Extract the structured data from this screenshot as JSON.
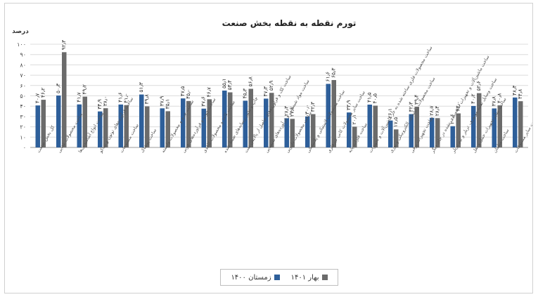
{
  "chart_data": {
    "type": "bar",
    "title": "تورم نقطه به نقطه بخش صنعت",
    "ylabel": "درصد",
    "ylim": [
      0,
      100
    ],
    "yticks": [
      "۰",
      "۱۰",
      "۲۰",
      "۳۰",
      "۴۰",
      "۵۰",
      "۶۰",
      "۷۰",
      "۸۰",
      "۹۰",
      "۱۰۰"
    ],
    "grid": true,
    "legend_position": "bottom",
    "categories": [
      "کل بخش صنعت",
      "ساخت محصولات غذایی",
      "ساخت انواع آشامیدنی‌ها",
      "ساخت فرآورده‌های توتون و تنباکو",
      "ساخت منسوجات",
      "ساخت پوشاک",
      "ساخت چرم و محصولات وابسته",
      "ساخت چوب و فرآورده‌های چوبی",
      "ساخت کاغذ و محصولات کاغذی",
      "چاپ و تکثیر رسانه‌های ضبط شده",
      "ساخت کک و فرآورده‌های حاصل از پالایش نفت",
      "ساخت مواد شیمیایی و فرآورده‌های شیمیایی",
      "ساخت محصولات دارویی",
      "ساخت محصولات لاستیکی و پلاستیکی",
      "ساخت سایر محصولات کانی غیرفلزی",
      "ساخت فلزات پایه",
      "ساخت محصولات فلزی ساخته شده به جز ماشین‌آلات و تجهیزات",
      "ساخت محصولات رایانه‌ای، الکترونیکی و نوری",
      "ساخت تجهیزات برقی",
      "ساخت ماشین‌آلات و تجهیزات طبقه‌بندی نشده در جای دیگر",
      "ساخت وسایل نقلیه موتوری، تریلر و نیم تریلر",
      "ساخت سایر تجهیزات حمل و نقل",
      "ساخت مبلمان",
      "ساخت سایر مصنوعات"
    ],
    "series": [
      {
        "name": "زمستان ۱۴۰۰",
        "color": "#2e5f9a",
        "values": [
          40.7,
          50.3,
          41.7,
          34.9,
          41.6,
          51.3,
          37.9,
          47.5,
          37.6,
          55.1,
          45.3,
          47.3,
          28.3,
          30.0,
          61.6,
          33.9,
          41.5,
          26.1,
          32.3,
          28.7,
          20.6,
          40.2,
          37.8,
          48.4
        ],
        "labels": [
          "۴۰٫۷",
          "۵۰٫۳",
          "۴۱٫۷",
          "۳۴٫۹",
          "۴۱٫۶",
          "۵۱٫۳",
          "۳۷٫۹",
          "۴۷٫۵",
          "۳۷٫۶",
          "۵۵٫۱",
          "۴۵٫۳",
          "۴۷٫۳",
          "۲۸٫۳",
          "۳۰٫۰",
          "۶۱٫۶",
          "۳۳٫۹",
          "۴۱٫۵",
          "۲۶٫۱",
          "۳۲٫۳",
          "۲۸٫۷",
          "۲۰٫۶",
          "۴۰٫۲",
          "۳۷٫۸",
          "۴۸٫۴"
        ]
      },
      {
        "name": "بهار ۱۴۰۱",
        "color": "#6b6b6b",
        "values": [
          46.2,
          92.3,
          49.2,
          38.0,
          41.0,
          39.8,
          35.1,
          45.0,
          46.7,
          53.4,
          56.8,
          52.9,
          27.7,
          32.3,
          65.3,
          20.1,
          40.5,
          17.5,
          39.4,
          28.4,
          33.0,
          52.6,
          40.8,
          44.8
        ],
        "labels": [
          "۴۶٫۲",
          "۹۲٫۳",
          "۴۹٫۲",
          "۳۸٫۰",
          "۴۱٫۰",
          "۳۹٫۸",
          "۳۵٫۱",
          "۴۵٫۰",
          "۴۶٫۷",
          "۵۳٫۴",
          "۵۶٫۸",
          "۵۲٫۹",
          "۲۷٫۷",
          "۳۲٫۳",
          "۶۵٫۳",
          "۲۰٫۱",
          "۴۰٫۵",
          "۱۷٫۵",
          "۳۹٫۴",
          "۲۸٫۴",
          "۳۳٫۰",
          "۵۲٫۶",
          "۴۰٫۸",
          "۴۴٫۸"
        ]
      }
    ]
  }
}
